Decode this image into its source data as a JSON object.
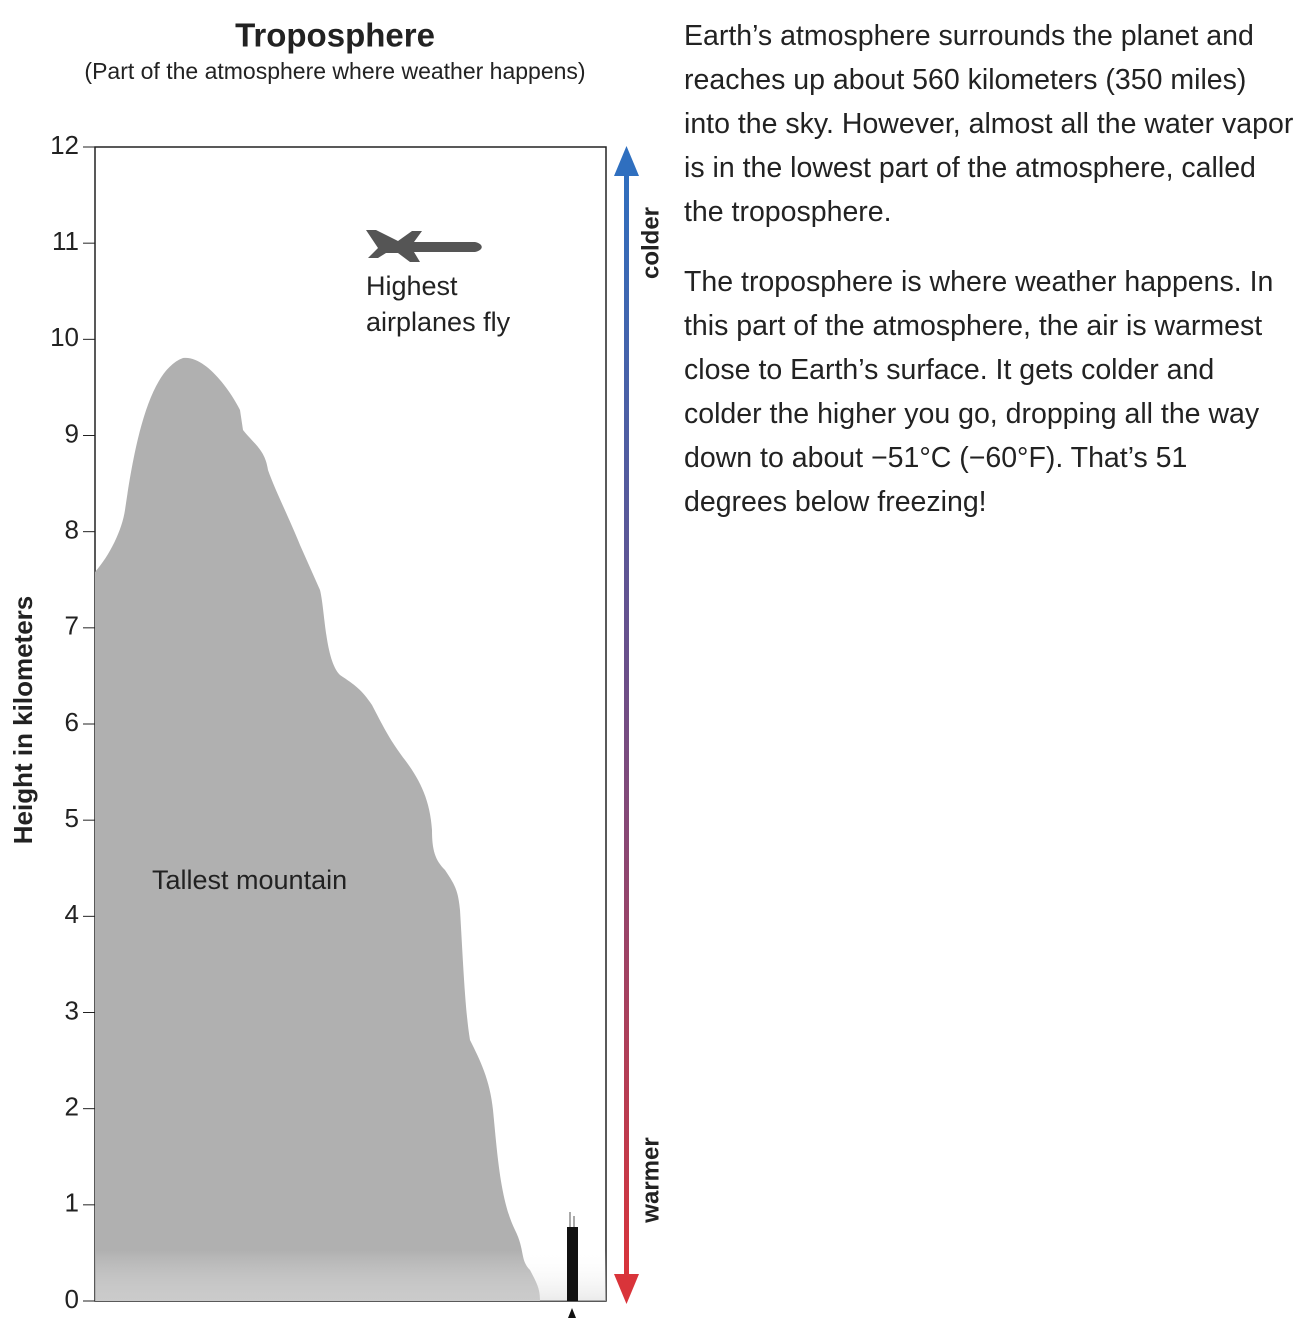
{
  "title": "Troposphere",
  "subtitle": "(Part of the atmosphere where weather happens)",
  "axis": {
    "label": "Height in kilometers",
    "ylim": [
      0,
      12
    ],
    "yticks": [
      0,
      1,
      2,
      3,
      4,
      5,
      6,
      7,
      8,
      9,
      10,
      11,
      12
    ]
  },
  "labels": {
    "airplane": [
      "Highest",
      "airplanes fly"
    ],
    "mountain": "Tallest mountain",
    "top": "colder",
    "bottom": "warmer"
  },
  "text": {
    "paragraphs": [
      "Earth’s atmosphere surrounds the planet and reaches up about 560 kilometers (350 miles) into the sky. However, almost all the water vapor is in the lowest part of the atmosphere, called the troposphere.",
      "The troposphere is where weather happens. In this part of the atmosphere, the air is warmest close to Earth’s surface. It gets colder and colder the higher you go, dropping all the way down to about −51°C (−60°F). That’s 51 degrees below freezing!"
    ]
  }
}
